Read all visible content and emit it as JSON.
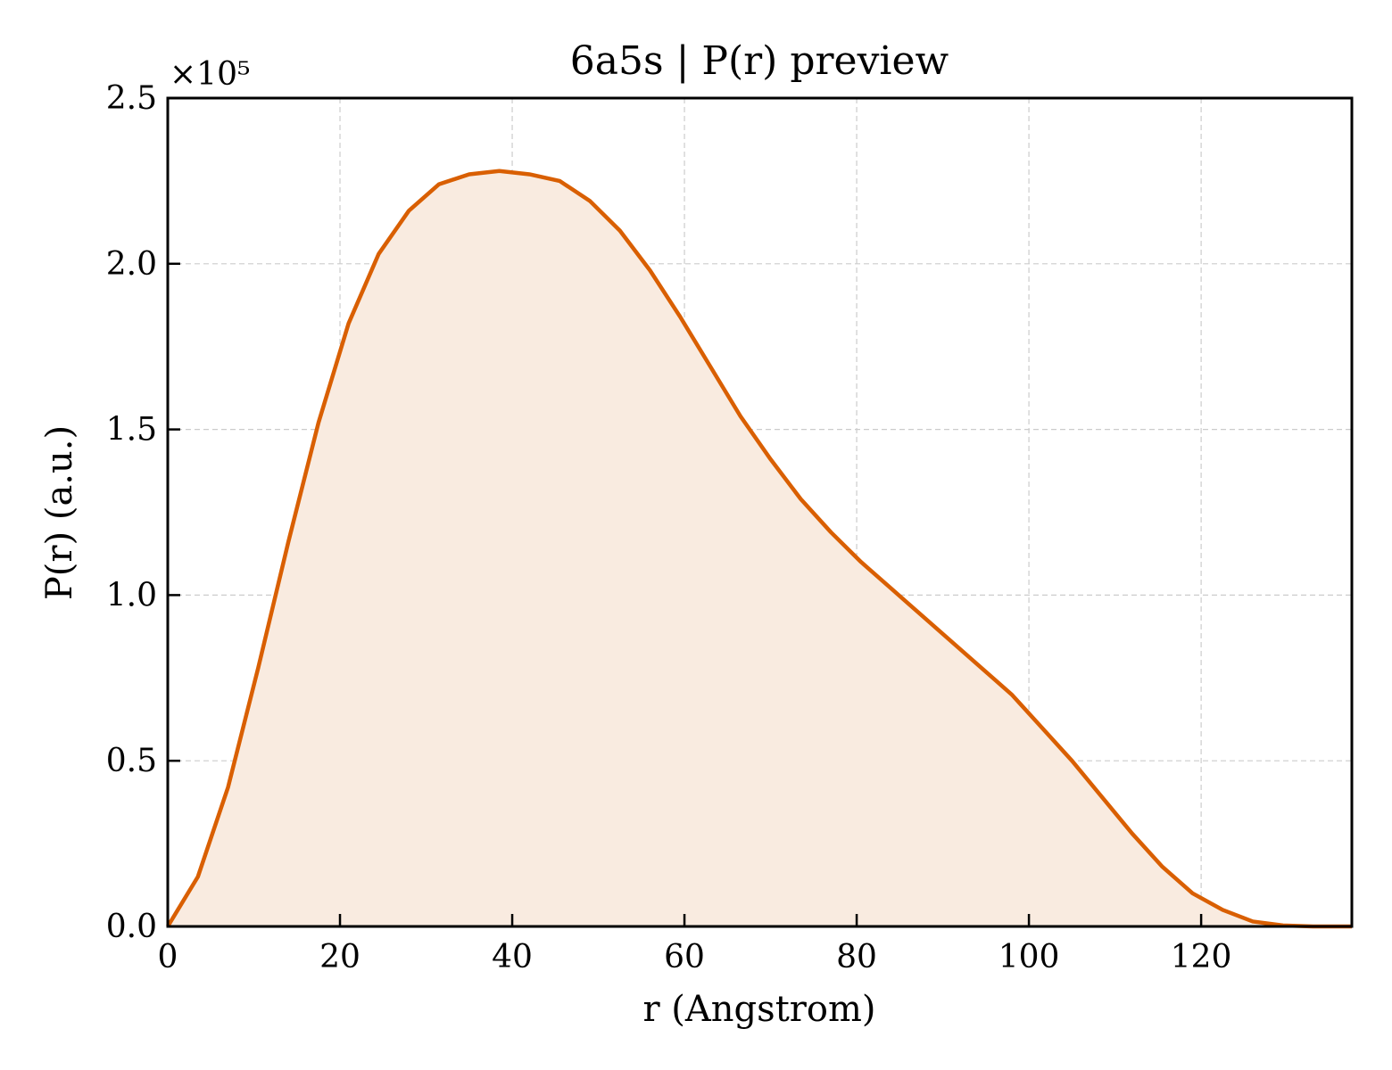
{
  "chart_data": {
    "type": "area",
    "title": "6a5s | P(r) preview",
    "xlabel": "r (Angstrom)",
    "ylabel": "P(r) (a.u.)",
    "y_offset_label": "×10⁵",
    "y_scale": 100000,
    "xlim": [
      0,
      137.5
    ],
    "ylim": [
      0,
      2.5
    ],
    "xticks": [
      0,
      20,
      40,
      60,
      80,
      100,
      120
    ],
    "xtick_labels": [
      "0",
      "20",
      "40",
      "60",
      "80",
      "100",
      "120"
    ],
    "yticks": [
      0.0,
      0.5,
      1.0,
      1.5,
      2.0,
      2.5
    ],
    "ytick_labels": [
      "0.0",
      "0.5",
      "1.0",
      "1.5",
      "2.0",
      "2.5"
    ],
    "grid": true,
    "colors": {
      "line": "#d95f02",
      "fill": "#f9ebe0"
    },
    "series": [
      {
        "x": [
          0,
          3.5,
          7.0,
          10.5,
          14.0,
          17.5,
          21.0,
          24.5,
          28.0,
          31.5,
          35.0,
          38.5,
          42.0,
          45.5,
          49.0,
          52.5,
          56.0,
          59.5,
          63.0,
          66.5,
          70.0,
          73.5,
          77.0,
          80.5,
          84.0,
          87.5,
          91.0,
          94.5,
          98.0,
          101.5,
          105.0,
          108.5,
          112.0,
          115.5,
          119.0,
          122.5,
          126.0,
          129.5,
          133.0,
          137.5
        ],
        "y": [
          0.0,
          0.15,
          0.42,
          0.78,
          1.16,
          1.52,
          1.82,
          2.03,
          2.16,
          2.24,
          2.27,
          2.28,
          2.27,
          2.25,
          2.19,
          2.1,
          1.98,
          1.84,
          1.69,
          1.54,
          1.41,
          1.29,
          1.19,
          1.1,
          1.02,
          0.94,
          0.86,
          0.78,
          0.7,
          0.6,
          0.5,
          0.39,
          0.28,
          0.18,
          0.1,
          0.05,
          0.015,
          0.003,
          0.0,
          0.0
        ]
      }
    ]
  }
}
